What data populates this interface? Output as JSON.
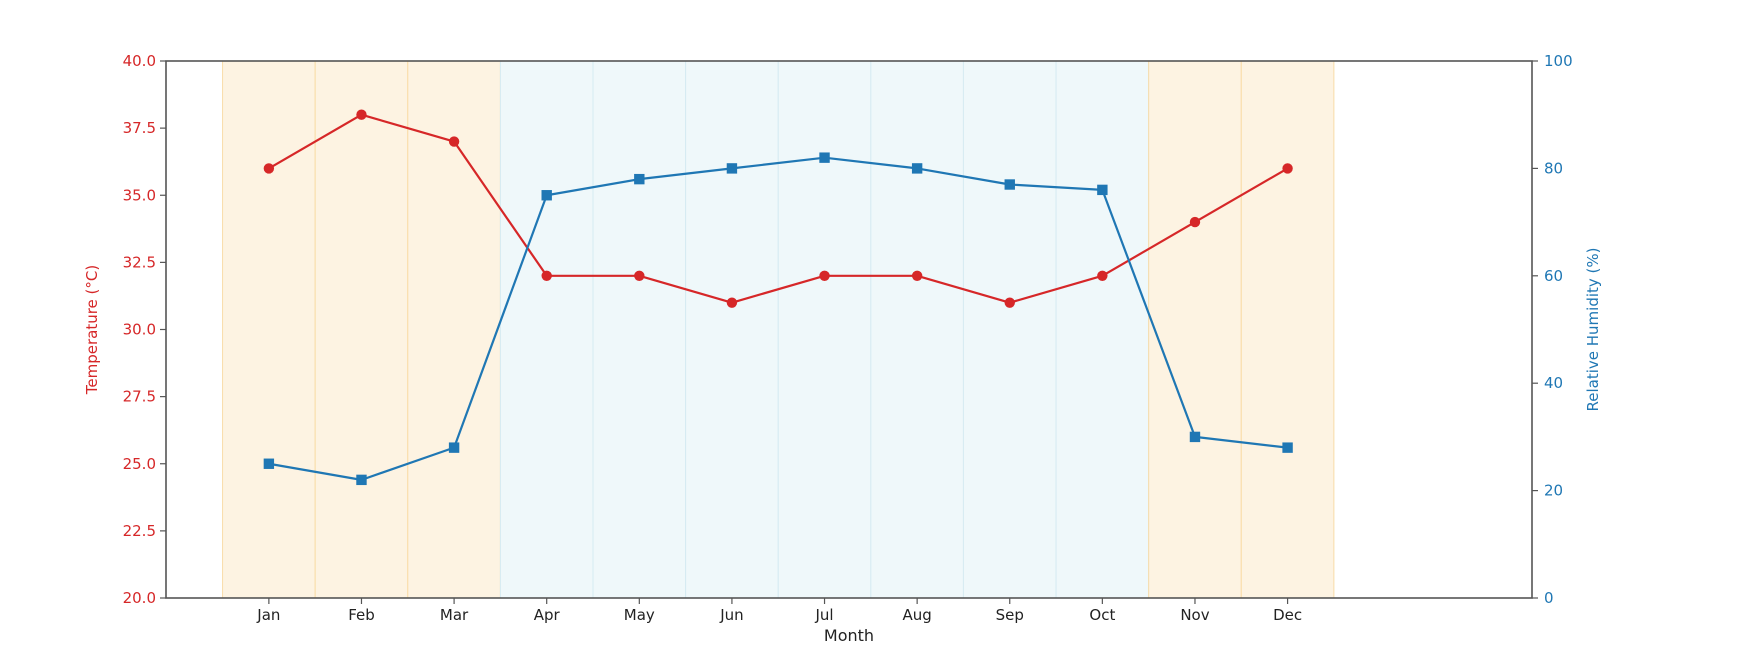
{
  "chart_data": {
    "type": "line",
    "title": "",
    "xlabel": "Month",
    "categories": [
      "Jan",
      "Feb",
      "Mar",
      "Apr",
      "May",
      "Jun",
      "Jul",
      "Aug",
      "Sep",
      "Oct",
      "Nov",
      "Dec"
    ],
    "y_left": {
      "label": "Temperature (°C)",
      "lim": [
        20.0,
        40.0
      ],
      "ticks": [
        "20.0",
        "22.5",
        "25.0",
        "27.5",
        "30.0",
        "32.5",
        "35.0",
        "37.5",
        "40.0"
      ],
      "color": "#d62728"
    },
    "y_right": {
      "label": "Relative Humidity (%)",
      "lim": [
        0,
        100
      ],
      "ticks": [
        "0",
        "20",
        "40",
        "60",
        "80",
        "100"
      ],
      "color": "#1f77b4"
    },
    "series": [
      {
        "axis": "left",
        "marker": "circle",
        "color": "#d62728",
        "values": [
          36,
          38,
          37,
          32,
          32,
          31,
          32,
          32,
          31,
          32,
          34,
          36
        ]
      },
      {
        "axis": "right",
        "marker": "square",
        "color": "#1f77b4",
        "values": [
          25,
          22,
          28,
          75,
          78,
          80,
          82,
          80,
          77,
          76,
          30,
          28
        ]
      }
    ],
    "season_bands": {
      "dry_months": [
        "Jan",
        "Feb",
        "Mar",
        "Nov",
        "Dec"
      ],
      "wet_months": [
        "Apr",
        "May",
        "Jun",
        "Jul",
        "Aug",
        "Sep",
        "Oct"
      ],
      "dry_color": "#fdf3e2",
      "dry_edge": "#f9dca8",
      "wet_color": "#eff8fa",
      "wet_edge": "#d6ebf2"
    },
    "grid": false,
    "legend": "none"
  }
}
